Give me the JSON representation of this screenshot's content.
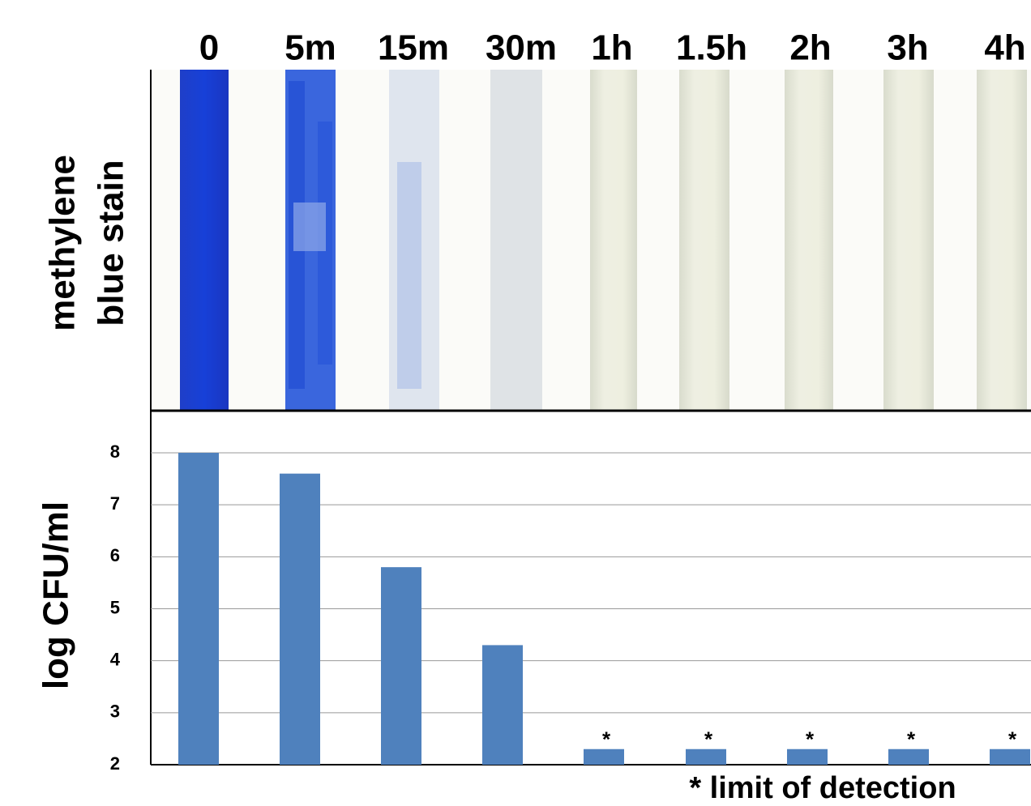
{
  "chart_data": {
    "type": "bar",
    "categories": [
      "0",
      "5m",
      "15m",
      "30m",
      "1h",
      "1.5h",
      "2h",
      "3h",
      "4h"
    ],
    "stain_label": [
      "methylene",
      "blue stain"
    ],
    "ylabel": "log CFU/ml",
    "values": [
      8,
      7.6,
      5.8,
      4.3,
      2.3,
      2.3,
      2.3,
      2.3,
      2.3
    ],
    "markers": [
      null,
      null,
      null,
      null,
      "*",
      "*",
      "*",
      "*",
      "*"
    ],
    "footnote": "* limit of detection",
    "color": "#4f81bd",
    "ylim": [
      2,
      8.7
    ],
    "yticks": [
      2,
      3,
      4,
      5,
      6,
      7,
      8
    ],
    "grid": true
  }
}
